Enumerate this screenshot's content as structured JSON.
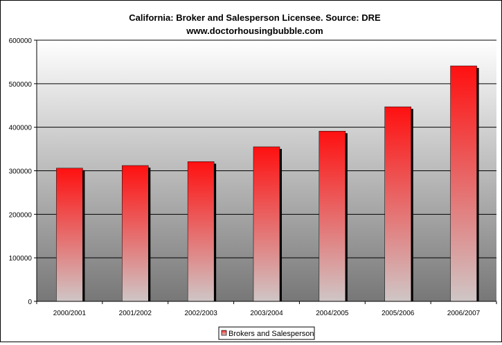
{
  "chart_data": {
    "type": "bar",
    "title": "California:  Broker and Salesperson Licensee.  Source: DRE",
    "subtitle": "www.doctorhousingbubble.com",
    "xlabel": "",
    "ylabel": "",
    "categories": [
      "2000/2001",
      "2001/2002",
      "2002/2003",
      "2003/2004",
      "2004/2005",
      "2005/2006",
      "2006/2007"
    ],
    "series": [
      {
        "name": "Brokers and Salesperson",
        "values": [
          306000,
          312000,
          321000,
          355000,
          391000,
          447000,
          541000
        ]
      }
    ],
    "ylim": [
      0,
      600000
    ],
    "yticks": [
      "0",
      "100000",
      "200000",
      "300000",
      "400000",
      "500000",
      "600000"
    ],
    "grid": true,
    "legend_position": "bottom",
    "colors": {
      "bar_top": "#ff1010",
      "bar_bottom": "#cfc6c6",
      "shadow": "#000000",
      "plot_top": "#ffffff",
      "plot_bottom": "#777777"
    }
  }
}
